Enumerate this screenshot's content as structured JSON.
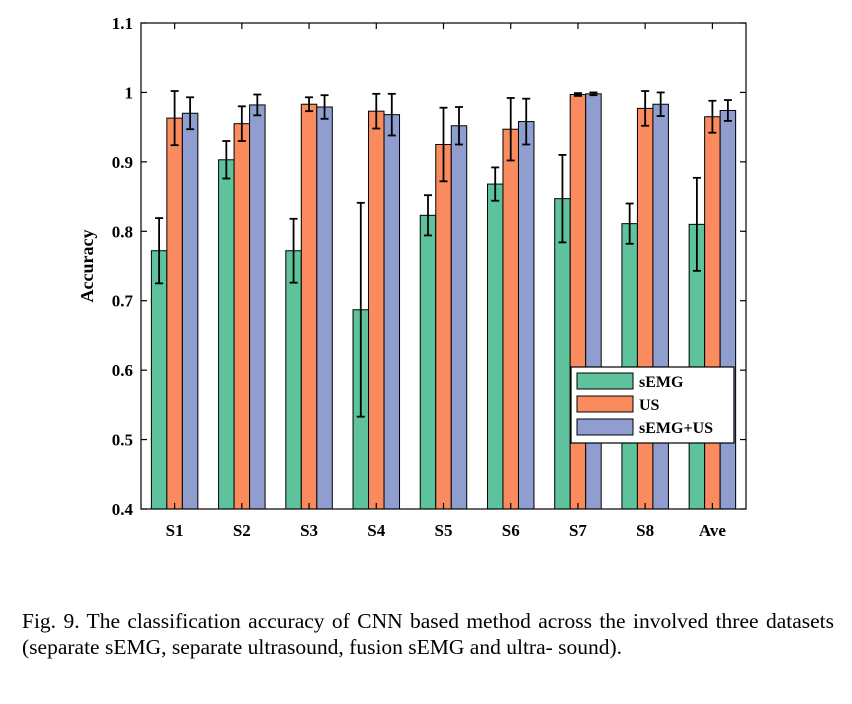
{
  "chart_data": {
    "type": "bar",
    "title": "",
    "xlabel": "",
    "ylabel": "Accuracy",
    "ylim": [
      0.4,
      1.1
    ],
    "yticks": [
      "0.4",
      "0.5",
      "0.6",
      "0.7",
      "0.8",
      "0.9",
      "1",
      "1.1"
    ],
    "yticks_values": [
      0.4,
      0.5,
      0.6,
      0.7,
      0.8,
      0.9,
      1.0,
      1.1
    ],
    "categories": [
      "S1",
      "S2",
      "S3",
      "S4",
      "S5",
      "S6",
      "S7",
      "S8",
      "Ave"
    ],
    "grid": false,
    "legend_position": "bottom-right",
    "series": [
      {
        "name": "sEMG",
        "color": "#5ec29c",
        "values": [
          0.772,
          0.903,
          0.772,
          0.687,
          0.823,
          0.868,
          0.847,
          0.811,
          0.81
        ],
        "errors": [
          0.047,
          0.027,
          0.046,
          0.154,
          0.029,
          0.024,
          0.063,
          0.029,
          0.067
        ]
      },
      {
        "name": "US",
        "color": "#f98b5e",
        "values": [
          0.963,
          0.955,
          0.983,
          0.973,
          0.925,
          0.947,
          0.997,
          0.977,
          0.965
        ],
        "errors": [
          0.039,
          0.025,
          0.01,
          0.025,
          0.053,
          0.045,
          0.002,
          0.025,
          0.023
        ]
      },
      {
        "name": "sEMG+US",
        "color": "#8f9ecf",
        "values": [
          0.97,
          0.982,
          0.979,
          0.968,
          0.952,
          0.958,
          0.998,
          0.983,
          0.974
        ],
        "errors": [
          0.023,
          0.015,
          0.017,
          0.03,
          0.027,
          0.033,
          0.002,
          0.017,
          0.015
        ]
      }
    ]
  },
  "caption": "Fig. 9.  The classification accuracy of CNN based method across the involved three datasets (separate sEMG, separate ultrasound, fusion sEMG and ultra- sound)."
}
